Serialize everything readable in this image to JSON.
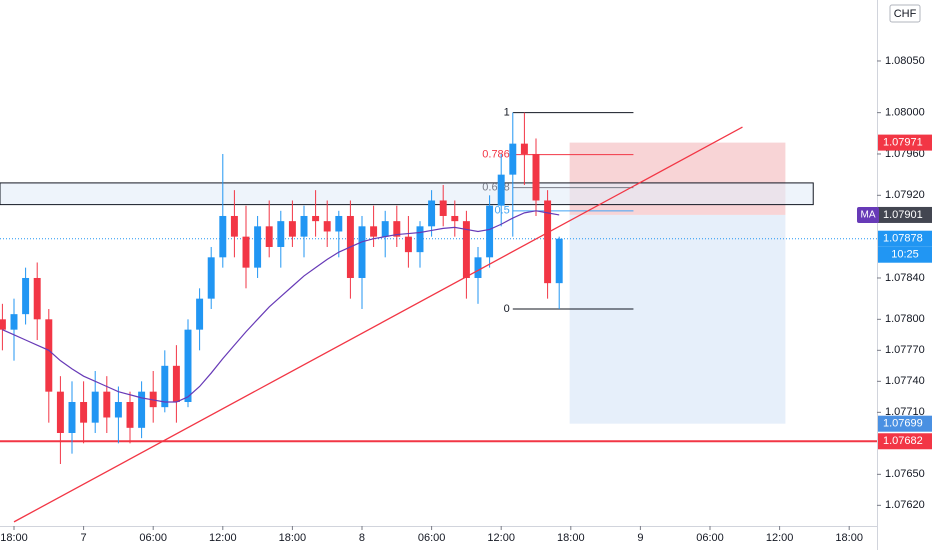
{
  "chart_data": {
    "type": "candlestick",
    "currency": "CHF",
    "up_color": "#2196f3",
    "down_color": "#f23645",
    "x": [
      -1,
      0,
      1,
      2,
      3,
      4,
      5,
      6,
      7,
      8,
      9,
      10,
      11,
      12,
      13,
      14,
      15,
      16,
      17,
      18,
      19,
      20,
      21,
      22,
      23,
      24,
      25,
      26,
      27,
      28,
      29,
      30,
      31,
      32,
      33,
      34,
      35,
      36,
      37,
      38,
      39,
      40,
      41,
      42,
      43,
      44,
      45,
      46,
      47
    ],
    "open": [
      1.078,
      1.0779,
      1.07805,
      1.0784,
      1.078,
      1.0773,
      1.0769,
      1.0772,
      1.077,
      1.0773,
      1.07705,
      1.0772,
      1.07695,
      1.0773,
      1.07715,
      1.07755,
      1.0772,
      1.0779,
      1.0782,
      1.0786,
      1.079,
      1.0788,
      1.0785,
      1.0789,
      1.0787,
      1.07895,
      1.0788,
      1.079,
      1.07895,
      1.07885,
      1.079,
      1.0784,
      1.0789,
      1.0788,
      1.07895,
      1.0788,
      1.07865,
      1.0789,
      1.07915,
      1.079,
      1.07895,
      1.0784,
      1.0786,
      1.0791,
      1.0794,
      1.0797,
      1.0796,
      1.07915,
      1.07835
    ],
    "high": [
      1.07815,
      1.0782,
      1.0785,
      1.07855,
      1.0781,
      1.07745,
      1.0774,
      1.0774,
      1.0775,
      1.07745,
      1.07735,
      1.0773,
      1.0774,
      1.0775,
      1.0777,
      1.07775,
      1.078,
      1.0783,
      1.0787,
      1.0796,
      1.07925,
      1.0791,
      1.079,
      1.07915,
      1.07905,
      1.07915,
      1.0791,
      1.07925,
      1.07915,
      1.07905,
      1.07915,
      1.079,
      1.0791,
      1.07905,
      1.0791,
      1.079,
      1.07895,
      1.07925,
      1.0793,
      1.07915,
      1.07905,
      1.0787,
      1.0792,
      1.0796,
      1.08,
      1.08,
      1.07975,
      1.07925,
      1.0788
    ],
    "low": [
      1.0777,
      1.0776,
      1.07795,
      1.0778,
      1.077,
      1.0766,
      1.0767,
      1.0768,
      1.0769,
      1.0769,
      1.0768,
      1.0768,
      1.07685,
      1.077,
      1.0771,
      1.077,
      1.07715,
      1.0777,
      1.0781,
      1.0785,
      1.0786,
      1.0783,
      1.0784,
      1.0786,
      1.0785,
      1.0787,
      1.0786,
      1.0788,
      1.0787,
      1.0786,
      1.0782,
      1.0781,
      1.0787,
      1.0786,
      1.0787,
      1.0785,
      1.0785,
      1.0788,
      1.0789,
      1.0788,
      1.0782,
      1.07815,
      1.0785,
      1.0789,
      1.0788,
      1.0793,
      1.079,
      1.0782,
      1.0781
    ],
    "close": [
      1.0779,
      1.07805,
      1.0784,
      1.078,
      1.0773,
      1.0769,
      1.0772,
      1.077,
      1.0773,
      1.07705,
      1.0772,
      1.07695,
      1.0773,
      1.07715,
      1.07755,
      1.0772,
      1.0779,
      1.0782,
      1.0786,
      1.079,
      1.0788,
      1.0785,
      1.0789,
      1.0787,
      1.07895,
      1.0788,
      1.079,
      1.07895,
      1.07885,
      1.079,
      1.0784,
      1.0789,
      1.0788,
      1.07895,
      1.0788,
      1.07865,
      1.0789,
      1.07915,
      1.079,
      1.07895,
      1.0784,
      1.0786,
      1.0791,
      1.0794,
      1.0797,
      1.0796,
      1.07915,
      1.07835,
      1.07878
    ],
    "ma": {
      "name": "MA",
      "color": "#673ab7",
      "values": [
        1.0779,
        1.07785,
        1.0778,
        1.07775,
        1.0777,
        1.0776,
        1.07752,
        1.07745,
        1.0774,
        1.07735,
        1.0773,
        1.07727,
        1.07724,
        1.07722,
        1.0772,
        1.0772,
        1.07725,
        1.07735,
        1.07748,
        1.07762,
        1.07775,
        1.07788,
        1.078,
        1.07812,
        1.07822,
        1.07832,
        1.07842,
        1.0785,
        1.07858,
        1.07865,
        1.0787,
        1.07875,
        1.07878,
        1.0788,
        1.07882,
        1.07883,
        1.07884,
        1.07886,
        1.07888,
        1.07889,
        1.07887,
        1.07885,
        1.07887,
        1.07892,
        1.07898,
        1.07903,
        1.07905,
        1.07903,
        1.07901
      ]
    },
    "xlim": [
      -1.207,
      74.397
    ],
    "ylim": [
      1.076,
      1.08109
    ],
    "xticks": [
      {
        "value": 0,
        "label": "18:00"
      },
      {
        "value": 6,
        "label": "7"
      },
      {
        "value": 12,
        "label": "06:00"
      },
      {
        "value": 18,
        "label": "12:00"
      },
      {
        "value": 24,
        "label": "18:00"
      },
      {
        "value": 30,
        "label": "8"
      },
      {
        "value": 36,
        "label": "06:00"
      },
      {
        "value": 42,
        "label": "12:00"
      },
      {
        "value": 48,
        "label": "18:00"
      },
      {
        "value": 54,
        "label": "9"
      },
      {
        "value": 60,
        "label": "06:00"
      },
      {
        "value": 66,
        "label": "12:00"
      },
      {
        "value": 72,
        "label": "18:00"
      }
    ],
    "yticks": [
      {
        "value": 1.0805,
        "label": "1.08050"
      },
      {
        "value": 1.08,
        "label": "1.08000"
      },
      {
        "value": 1.0796,
        "label": "1.07960"
      },
      {
        "value": 1.0792,
        "label": "1.07920"
      },
      {
        "value": 1.0784,
        "label": "1.07840"
      },
      {
        "value": 1.078,
        "label": "1.07800"
      },
      {
        "value": 1.0777,
        "label": "1.07770"
      },
      {
        "value": 1.0774,
        "label": "1.07740"
      },
      {
        "value": 1.0771,
        "label": "1.07710"
      },
      {
        "value": 1.0765,
        "label": "1.07650"
      },
      {
        "value": 1.0762,
        "label": "1.07620"
      }
    ],
    "grid": false,
    "trendline": {
      "x": [
        0,
        62.8
      ],
      "y": [
        1.07604,
        1.07986
      ],
      "color": "#f23645"
    },
    "zone": {
      "x": [
        -1.207,
        68.9
      ],
      "y": [
        1.07911,
        1.07932
      ],
      "color": "#e3ecf9"
    },
    "hline": {
      "value": 1.07682,
      "color": "#f23645"
    },
    "fib": {
      "x": [
        43,
        53.4
      ],
      "high": 1.08,
      "low": 1.0781,
      "levels": [
        1,
        0.786,
        0.618,
        0.5,
        0
      ],
      "colors": [
        "#131722",
        "#f23645",
        "#787b86",
        "#42a5f5",
        "#131722"
      ]
    },
    "position": {
      "x": [
        47.9,
        66.5
      ],
      "stop": 1.07971,
      "entry": 1.07901,
      "target": 1.07699,
      "stop_color": "#f8d4d6",
      "target_color": "#e6effa"
    },
    "last_price": {
      "value": 1.07878,
      "countdown": "10:25",
      "color": "#2196f3"
    }
  }
}
